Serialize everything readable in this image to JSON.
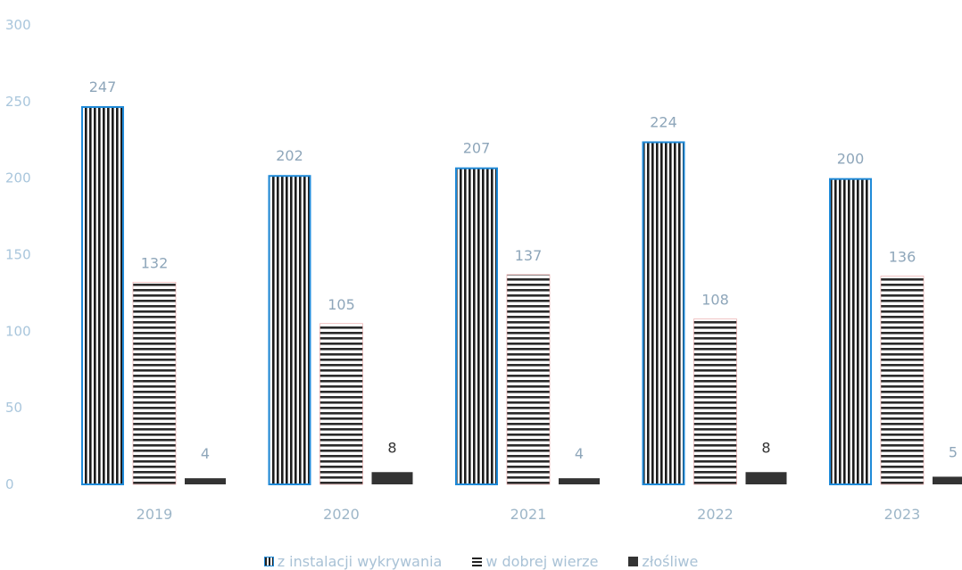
{
  "chart_data": {
    "type": "bar",
    "categories": [
      "2019",
      "2020",
      "2021",
      "2022",
      "2023"
    ],
    "series": [
      {
        "name": "z instalacji wykrywania",
        "values": [
          247,
          202,
          207,
          224,
          200
        ],
        "labels": [
          "247",
          "202",
          "207",
          "224",
          "200"
        ]
      },
      {
        "name": "w dobrej wierze",
        "values": [
          132,
          105,
          137,
          108,
          136
        ],
        "labels": [
          "132",
          "105",
          "137",
          "108",
          "136"
        ]
      },
      {
        "name": "złośliwe",
        "values": [
          4,
          8,
          4,
          8,
          5
        ],
        "labels": [
          "4",
          "8",
          "4",
          "8",
          "5"
        ]
      }
    ],
    "ylim": [
      0,
      300
    ],
    "yticks": [
      "0",
      "50",
      "100",
      "150",
      "200",
      "250",
      "300"
    ],
    "grid": false,
    "legend_position": "bottom"
  },
  "colors": {
    "series0_border": "#1f8ad8",
    "series1_border": "#e8a0a0",
    "series2_fill": "#333333",
    "axis_text": "#a9c6dc"
  }
}
